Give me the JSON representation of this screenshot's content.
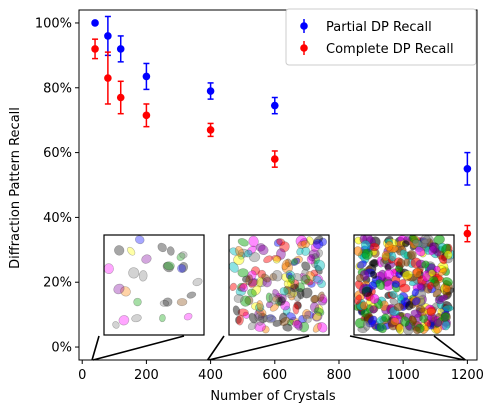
{
  "chart_data": {
    "type": "scatter",
    "xlabel": "Number of Crystals",
    "ylabel": "Diffraction Pattern Recall",
    "xlim": [
      -10,
      1230
    ],
    "ylim": [
      -4,
      104
    ],
    "x_ticks": [
      0,
      200,
      400,
      600,
      800,
      1000,
      1200
    ],
    "x_tick_labels": [
      "0",
      "200",
      "400",
      "600",
      "800",
      "1000",
      "1200"
    ],
    "y_ticks": [
      0,
      20,
      40,
      60,
      80,
      100
    ],
    "y_tick_labels": [
      "0%",
      "20%",
      "40%",
      "60%",
      "80%",
      "100%"
    ],
    "legend_position": "top-right",
    "series": [
      {
        "name": "Partial DP Recall",
        "color": "#0000ff",
        "points": [
          {
            "x": 40,
            "y": 100,
            "err": 0
          },
          {
            "x": 80,
            "y": 96,
            "err": 6
          },
          {
            "x": 120,
            "y": 92,
            "err": 4
          },
          {
            "x": 200,
            "y": 83.5,
            "err": 4
          },
          {
            "x": 400,
            "y": 79,
            "err": 2.5
          },
          {
            "x": 600,
            "y": 74.5,
            "err": 2.5
          },
          {
            "x": 1200,
            "y": 55,
            "err": 5
          }
        ]
      },
      {
        "name": "Complete DP Recall",
        "color": "#ff0000",
        "points": [
          {
            "x": 40,
            "y": 92,
            "err": 3
          },
          {
            "x": 80,
            "y": 83,
            "err": 8
          },
          {
            "x": 120,
            "y": 77,
            "err": 5
          },
          {
            "x": 200,
            "y": 71.5,
            "err": 3.5
          },
          {
            "x": 400,
            "y": 67,
            "err": 2
          },
          {
            "x": 600,
            "y": 58,
            "err": 2.5
          },
          {
            "x": 1200,
            "y": 35,
            "err": 2.5
          }
        ]
      }
    ],
    "insets": [
      {
        "name": "inset-sparse-crystals",
        "points_to_x": 40
      },
      {
        "name": "inset-medium-crystals",
        "points_to_x": 400
      },
      {
        "name": "inset-dense-crystals",
        "points_to_x": 1200
      }
    ]
  }
}
